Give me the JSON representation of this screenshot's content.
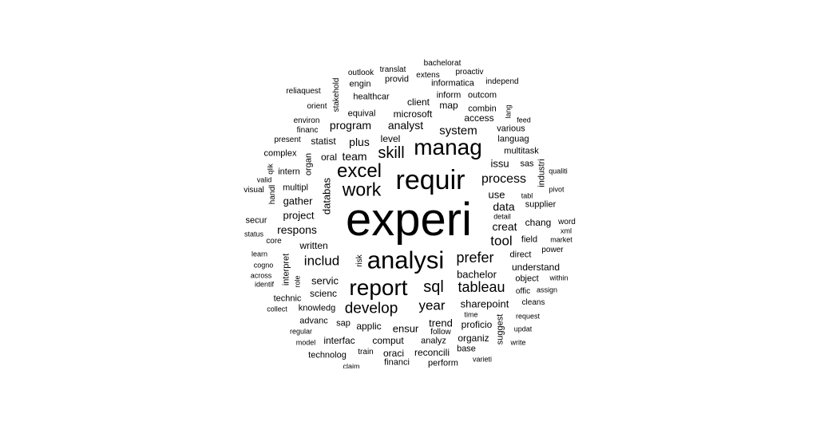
{
  "word_cloud": {
    "words": [
      "experi",
      "requir",
      "analysi",
      "manag",
      "report",
      "excel",
      "work",
      "skill",
      "sql",
      "develop",
      "tableau",
      "prefer",
      "process",
      "year",
      "includ",
      "tool",
      "system",
      "program",
      "analyst",
      "team",
      "data",
      "plus",
      "respons",
      "level",
      "creat",
      "microsoft",
      "gather",
      "project",
      "use",
      "issu",
      "bachelor",
      "servic",
      "sharepoint",
      "ensur",
      "applic",
      "trend",
      "written",
      "client",
      "map",
      "access",
      "sas",
      "chang",
      "supplier",
      "comput",
      "organiz",
      "proficio",
      "oraci",
      "financi",
      "perform",
      "reconcili",
      "base",
      "technolog",
      "train",
      "interfac",
      "sap",
      "knowledg",
      "advanc",
      "technic",
      "scienc",
      "direct",
      "understand",
      "object",
      "offic",
      "cleans",
      "field",
      "healthcar",
      "inform",
      "outcom",
      "informatica",
      "engin",
      "provid",
      "outlook",
      "translat",
      "extens",
      "proactiv",
      "bachelorat",
      "independ",
      "reliaquest",
      "orient",
      "environ",
      "financ",
      "present",
      "complex",
      "statist",
      "equival",
      "combin",
      "various",
      "languag",
      "multitask",
      "oral",
      "intern",
      "multipl",
      "valid",
      "visual",
      "qualiti",
      "pivot",
      "tabl",
      "detail",
      "word",
      "xml",
      "market",
      "power",
      "secur",
      "status",
      "core",
      "learn",
      "cogno",
      "across",
      "identif",
      "within",
      "assign",
      "collect",
      "regular",
      "model",
      "time",
      "request",
      "updat",
      "write",
      "varieti",
      "claim",
      "follow",
      "analyz",
      "stakehold",
      "lang",
      "feed",
      "qlik",
      "handl",
      "organ",
      "databas",
      "industri",
      "interpret",
      "role",
      "risk",
      "suggest"
    ]
  }
}
